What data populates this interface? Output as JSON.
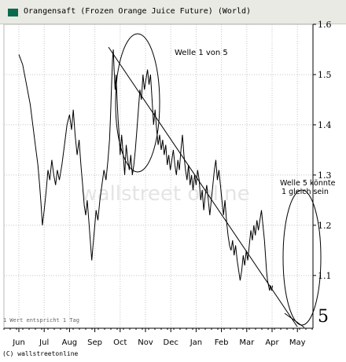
{
  "legend": {
    "label": "Orangensaft (Frozen Orange Juice Future) (World)",
    "swatch_color": "#0a6b4f"
  },
  "footer": {
    "text": "(C) wallstreetonline"
  },
  "watermark": "wallstreet online",
  "chart_data": {
    "type": "line",
    "x_ticks": [
      "Jun",
      "Jul",
      "Aug",
      "Sep",
      "Oct",
      "Nov",
      "Dec",
      "Jan",
      "Feb",
      "Mar",
      "Apr",
      "May"
    ],
    "y_ticks": [
      1.1,
      1.2,
      1.3,
      1.4,
      1.5,
      1.6
    ],
    "ylim": [
      0.995,
      1.6
    ],
    "y_axis_side": "right",
    "grid": "dotted",
    "line_color": "#000000",
    "series": [
      {
        "values": [
          [
            0.0,
            1.54
          ],
          [
            0.15,
            1.52
          ],
          [
            0.3,
            1.48
          ],
          [
            0.45,
            1.44
          ],
          [
            0.55,
            1.4
          ],
          [
            0.65,
            1.36
          ],
          [
            0.75,
            1.32
          ],
          [
            0.82,
            1.28
          ],
          [
            0.88,
            1.24
          ],
          [
            0.93,
            1.2
          ],
          [
            1.0,
            1.23
          ],
          [
            1.08,
            1.27
          ],
          [
            1.15,
            1.31
          ],
          [
            1.22,
            1.29
          ],
          [
            1.3,
            1.33
          ],
          [
            1.38,
            1.3
          ],
          [
            1.45,
            1.28
          ],
          [
            1.52,
            1.31
          ],
          [
            1.6,
            1.29
          ],
          [
            1.7,
            1.32
          ],
          [
            1.8,
            1.36
          ],
          [
            1.9,
            1.4
          ],
          [
            2.0,
            1.42
          ],
          [
            2.08,
            1.39
          ],
          [
            2.15,
            1.43
          ],
          [
            2.22,
            1.38
          ],
          [
            2.3,
            1.34
          ],
          [
            2.38,
            1.37
          ],
          [
            2.45,
            1.32
          ],
          [
            2.52,
            1.28
          ],
          [
            2.58,
            1.24
          ],
          [
            2.64,
            1.22
          ],
          [
            2.7,
            1.25
          ],
          [
            2.76,
            1.21
          ],
          [
            2.82,
            1.17
          ],
          [
            2.88,
            1.13
          ],
          [
            2.93,
            1.16
          ],
          [
            2.98,
            1.19
          ],
          [
            3.05,
            1.23
          ],
          [
            3.12,
            1.21
          ],
          [
            3.2,
            1.25
          ],
          [
            3.28,
            1.28
          ],
          [
            3.36,
            1.31
          ],
          [
            3.44,
            1.29
          ],
          [
            3.52,
            1.33
          ],
          [
            3.58,
            1.37
          ],
          [
            3.62,
            1.42
          ],
          [
            3.66,
            1.48
          ],
          [
            3.7,
            1.53
          ],
          [
            3.73,
            1.55
          ],
          [
            3.76,
            1.51
          ],
          [
            3.8,
            1.47
          ],
          [
            3.84,
            1.5
          ],
          [
            3.88,
            1.45
          ],
          [
            3.92,
            1.41
          ],
          [
            3.96,
            1.38
          ],
          [
            4.0,
            1.34
          ],
          [
            4.06,
            1.38
          ],
          [
            4.12,
            1.34
          ],
          [
            4.18,
            1.3
          ],
          [
            4.24,
            1.36
          ],
          [
            4.3,
            1.33
          ],
          [
            4.36,
            1.31
          ],
          [
            4.42,
            1.34
          ],
          [
            4.48,
            1.3
          ],
          [
            4.54,
            1.32
          ],
          [
            4.6,
            1.35
          ],
          [
            4.66,
            1.39
          ],
          [
            4.72,
            1.43
          ],
          [
            4.78,
            1.47
          ],
          [
            4.84,
            1.45
          ],
          [
            4.9,
            1.5
          ],
          [
            4.96,
            1.47
          ],
          [
            5.02,
            1.49
          ],
          [
            5.08,
            1.51
          ],
          [
            5.14,
            1.48
          ],
          [
            5.2,
            1.5
          ],
          [
            5.26,
            1.45
          ],
          [
            5.32,
            1.4
          ],
          [
            5.38,
            1.43
          ],
          [
            5.44,
            1.39
          ],
          [
            5.5,
            1.36
          ],
          [
            5.56,
            1.38
          ],
          [
            5.62,
            1.35
          ],
          [
            5.68,
            1.37
          ],
          [
            5.74,
            1.34
          ],
          [
            5.8,
            1.36
          ],
          [
            5.86,
            1.32
          ],
          [
            5.92,
            1.34
          ],
          [
            5.98,
            1.31
          ],
          [
            6.04,
            1.33
          ],
          [
            6.1,
            1.35
          ],
          [
            6.16,
            1.32
          ],
          [
            6.22,
            1.3
          ],
          [
            6.28,
            1.33
          ],
          [
            6.34,
            1.31
          ],
          [
            6.4,
            1.35
          ],
          [
            6.46,
            1.38
          ],
          [
            6.52,
            1.34
          ],
          [
            6.58,
            1.31
          ],
          [
            6.64,
            1.29
          ],
          [
            6.7,
            1.32
          ],
          [
            6.76,
            1.28
          ],
          [
            6.82,
            1.3
          ],
          [
            6.88,
            1.27
          ],
          [
            6.94,
            1.3
          ],
          [
            7.0,
            1.28
          ],
          [
            7.06,
            1.31
          ],
          [
            7.12,
            1.29
          ],
          [
            7.18,
            1.25
          ],
          [
            7.24,
            1.27
          ],
          [
            7.3,
            1.23
          ],
          [
            7.36,
            1.26
          ],
          [
            7.42,
            1.28
          ],
          [
            7.48,
            1.25
          ],
          [
            7.54,
            1.22
          ],
          [
            7.6,
            1.25
          ],
          [
            7.66,
            1.28
          ],
          [
            7.72,
            1.31
          ],
          [
            7.78,
            1.33
          ],
          [
            7.84,
            1.29
          ],
          [
            7.9,
            1.31
          ],
          [
            7.96,
            1.28
          ],
          [
            8.02,
            1.25
          ],
          [
            8.08,
            1.22
          ],
          [
            8.14,
            1.25
          ],
          [
            8.2,
            1.21
          ],
          [
            8.26,
            1.18
          ],
          [
            8.32,
            1.16
          ],
          [
            8.38,
            1.15
          ],
          [
            8.44,
            1.17
          ],
          [
            8.5,
            1.14
          ],
          [
            8.56,
            1.16
          ],
          [
            8.62,
            1.13
          ],
          [
            8.68,
            1.11
          ],
          [
            8.74,
            1.09
          ],
          [
            8.8,
            1.11
          ],
          [
            8.86,
            1.14
          ],
          [
            8.92,
            1.12
          ],
          [
            8.98,
            1.15
          ],
          [
            9.04,
            1.13
          ],
          [
            9.1,
            1.16
          ],
          [
            9.16,
            1.19
          ],
          [
            9.22,
            1.17
          ],
          [
            9.28,
            1.2
          ],
          [
            9.34,
            1.18
          ],
          [
            9.4,
            1.21
          ],
          [
            9.46,
            1.19
          ],
          [
            9.52,
            1.21
          ],
          [
            9.58,
            1.23
          ],
          [
            9.64,
            1.2
          ],
          [
            9.7,
            1.17
          ],
          [
            9.74,
            1.14
          ],
          [
            9.78,
            1.11
          ],
          [
            9.82,
            1.09
          ],
          [
            9.86,
            1.08
          ],
          [
            9.9,
            1.07
          ],
          [
            9.94,
            1.08
          ],
          [
            9.98,
            1.07
          ],
          [
            10.02,
            1.08
          ]
        ]
      }
    ],
    "annotations": {
      "wave1": "Welle 1 von 5",
      "wave5_line1": "Welle 5 könnte",
      "wave5_line2": "1 gleich sein",
      "big5": "5",
      "bottom_left": "1 Wert entspricht 1 Tag"
    }
  }
}
